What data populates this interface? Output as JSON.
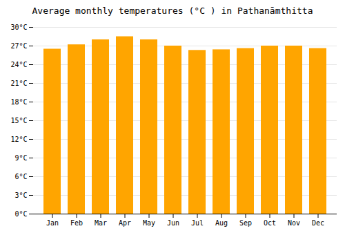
{
  "chart_data": {
    "type": "bar",
    "title": "Average monthly temperatures (°C ) in Pathanāmthitta",
    "categories": [
      "Jan",
      "Feb",
      "Mar",
      "Apr",
      "May",
      "Jun",
      "Jul",
      "Aug",
      "Sep",
      "Oct",
      "Nov",
      "Dec"
    ],
    "values": [
      26.5,
      27.2,
      28.0,
      28.5,
      28.0,
      27.0,
      26.3,
      26.4,
      26.6,
      27.0,
      27.0,
      26.6
    ],
    "color": "#FFA500",
    "ylim": [
      0,
      30
    ],
    "yticks": [
      {
        "value": 0,
        "label": "0°C"
      },
      {
        "value": 3,
        "label": "3°C"
      },
      {
        "value": 6,
        "label": "6°C"
      },
      {
        "value": 9,
        "label": "9°C"
      },
      {
        "value": 12,
        "label": "12°C"
      },
      {
        "value": 15,
        "label": "15°C"
      },
      {
        "value": 18,
        "label": "18°C"
      },
      {
        "value": 21,
        "label": "21°C"
      },
      {
        "value": 24,
        "label": "24°C"
      },
      {
        "value": 27,
        "label": "27°C"
      },
      {
        "value": 30,
        "label": "30°C"
      }
    ],
    "grid": true
  }
}
